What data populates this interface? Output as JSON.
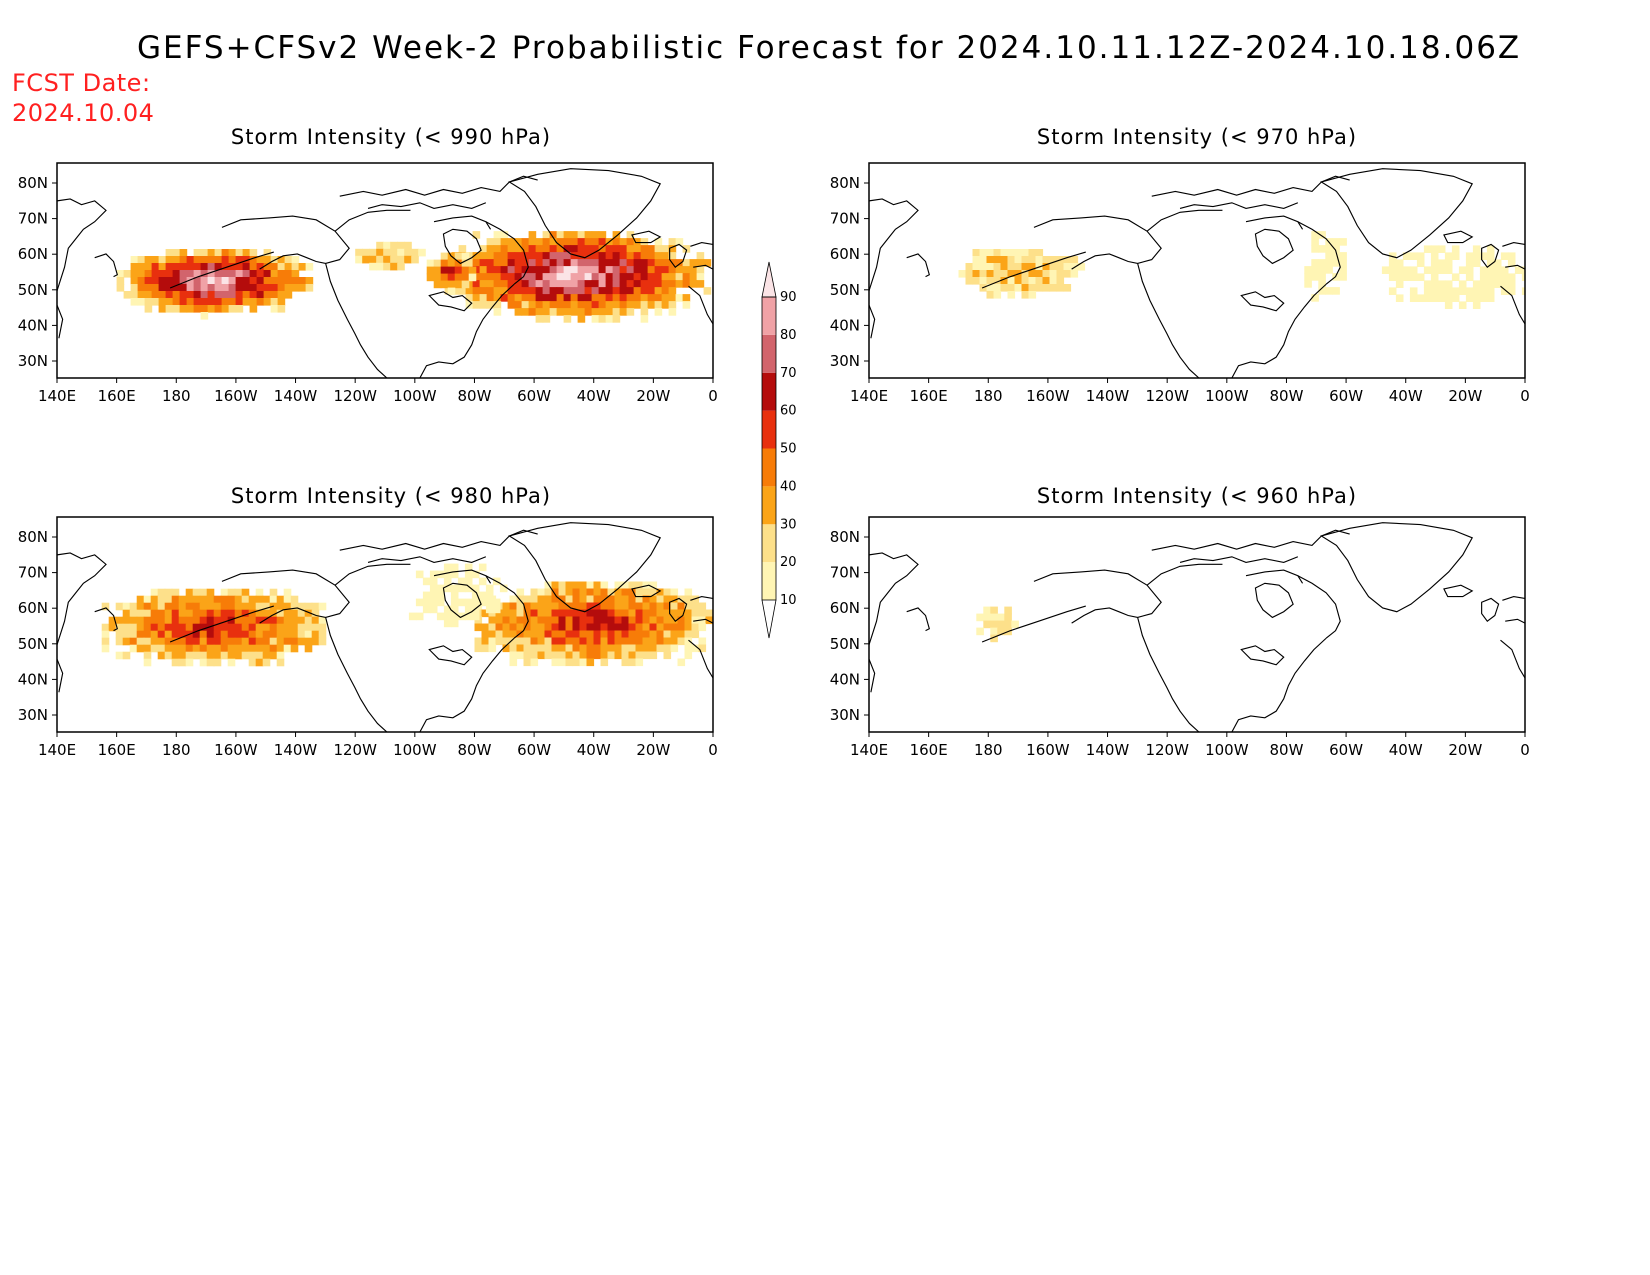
{
  "title": "GEFS+CFSv2 Week-2 Probabilistic Forecast for 2024.10.11.12Z-2024.10.18.06Z",
  "fcst_date": {
    "label": "FCST Date:",
    "value": "2024.10.04"
  },
  "colors": {
    "title": "#000000",
    "fcst_date": "#ff2020",
    "coastline": "#000000"
  },
  "colorbar": {
    "levels": [
      10,
      20,
      30,
      40,
      50,
      60,
      70,
      80,
      90
    ],
    "bins": [
      {
        "range": "10-20",
        "color": "#fff5b4"
      },
      {
        "range": "20-30",
        "color": "#fde08a"
      },
      {
        "range": "30-40",
        "color": "#fba418"
      },
      {
        "range": "40-50",
        "color": "#f77c08"
      },
      {
        "range": "50-60",
        "color": "#e8300e"
      },
      {
        "range": "60-70",
        "color": "#b40c0c"
      },
      {
        "range": "70-80",
        "color": "#d2646c"
      },
      {
        "range": "80-90",
        "color": "#f0a2a6"
      },
      {
        "range": ">90",
        "color": "#fbe4e6"
      }
    ]
  },
  "axes": {
    "x_ticks": [
      "140E",
      "160E",
      "180",
      "160W",
      "140W",
      "120W",
      "100W",
      "80W",
      "60W",
      "40W",
      "20W",
      "0"
    ],
    "y_ticks": [
      "80N",
      "70N",
      "60N",
      "50N",
      "40N",
      "30N"
    ],
    "lon_range": [
      "140E",
      "0"
    ],
    "lat_range": [
      "25N",
      "85N"
    ]
  },
  "panels": [
    {
      "title": "Storm Intensity (< 990 hPa)",
      "threshold_hpa": 990,
      "regions": [
        {
          "name": "north-pacific-core",
          "lon_range": [
            160,
            225
          ],
          "lat_range": [
            43,
            61
          ],
          "max_prob": ">90"
        },
        {
          "name": "north-atlantic-core",
          "lon_range": [
            270,
            357
          ],
          "lat_range": [
            42,
            66
          ],
          "max_prob": ">90"
        },
        {
          "name": "hudson-bay",
          "lon_range": [
            264,
            280
          ],
          "lat_range": [
            50,
            60
          ],
          "max_prob": "60-70"
        },
        {
          "name": "northwest-canada",
          "lon_range": [
            240,
            262
          ],
          "lat_range": [
            55,
            63
          ],
          "max_prob": "30-40"
        }
      ]
    },
    {
      "title": "Storm Intensity (< 970 hPa)",
      "threshold_hpa": 970,
      "regions": [
        {
          "name": "bering-sea",
          "lon_range": [
            170,
            210
          ],
          "lat_range": [
            48,
            61
          ],
          "max_prob": "30-40"
        },
        {
          "name": "north-atlantic",
          "lon_range": [
            312,
            360
          ],
          "lat_range": [
            46,
            62
          ],
          "max_prob": "10-20"
        },
        {
          "name": "labrador",
          "lon_range": [
            286,
            300
          ],
          "lat_range": [
            48,
            66
          ],
          "max_prob": "10-20"
        }
      ]
    },
    {
      "title": "Storm Intensity (< 980 hPa)",
      "threshold_hpa": 980,
      "regions": [
        {
          "name": "north-pacific",
          "lon_range": [
            155,
            230
          ],
          "lat_range": [
            44,
            65
          ],
          "max_prob": "60-70"
        },
        {
          "name": "north-atlantic",
          "lon_range": [
            280,
            360
          ],
          "lat_range": [
            44,
            67
          ],
          "max_prob": "60-70"
        },
        {
          "name": "hudson-bay",
          "lon_range": [
            258,
            290
          ],
          "lat_range": [
            55,
            72
          ],
          "max_prob": "10-20"
        }
      ]
    },
    {
      "title": "Storm Intensity (< 960 hPa)",
      "threshold_hpa": 960,
      "regions": [
        {
          "name": "bering-sea",
          "lon_range": [
            176,
            190
          ],
          "lat_range": [
            52,
            60
          ],
          "max_prob": "20-30"
        }
      ]
    }
  ]
}
